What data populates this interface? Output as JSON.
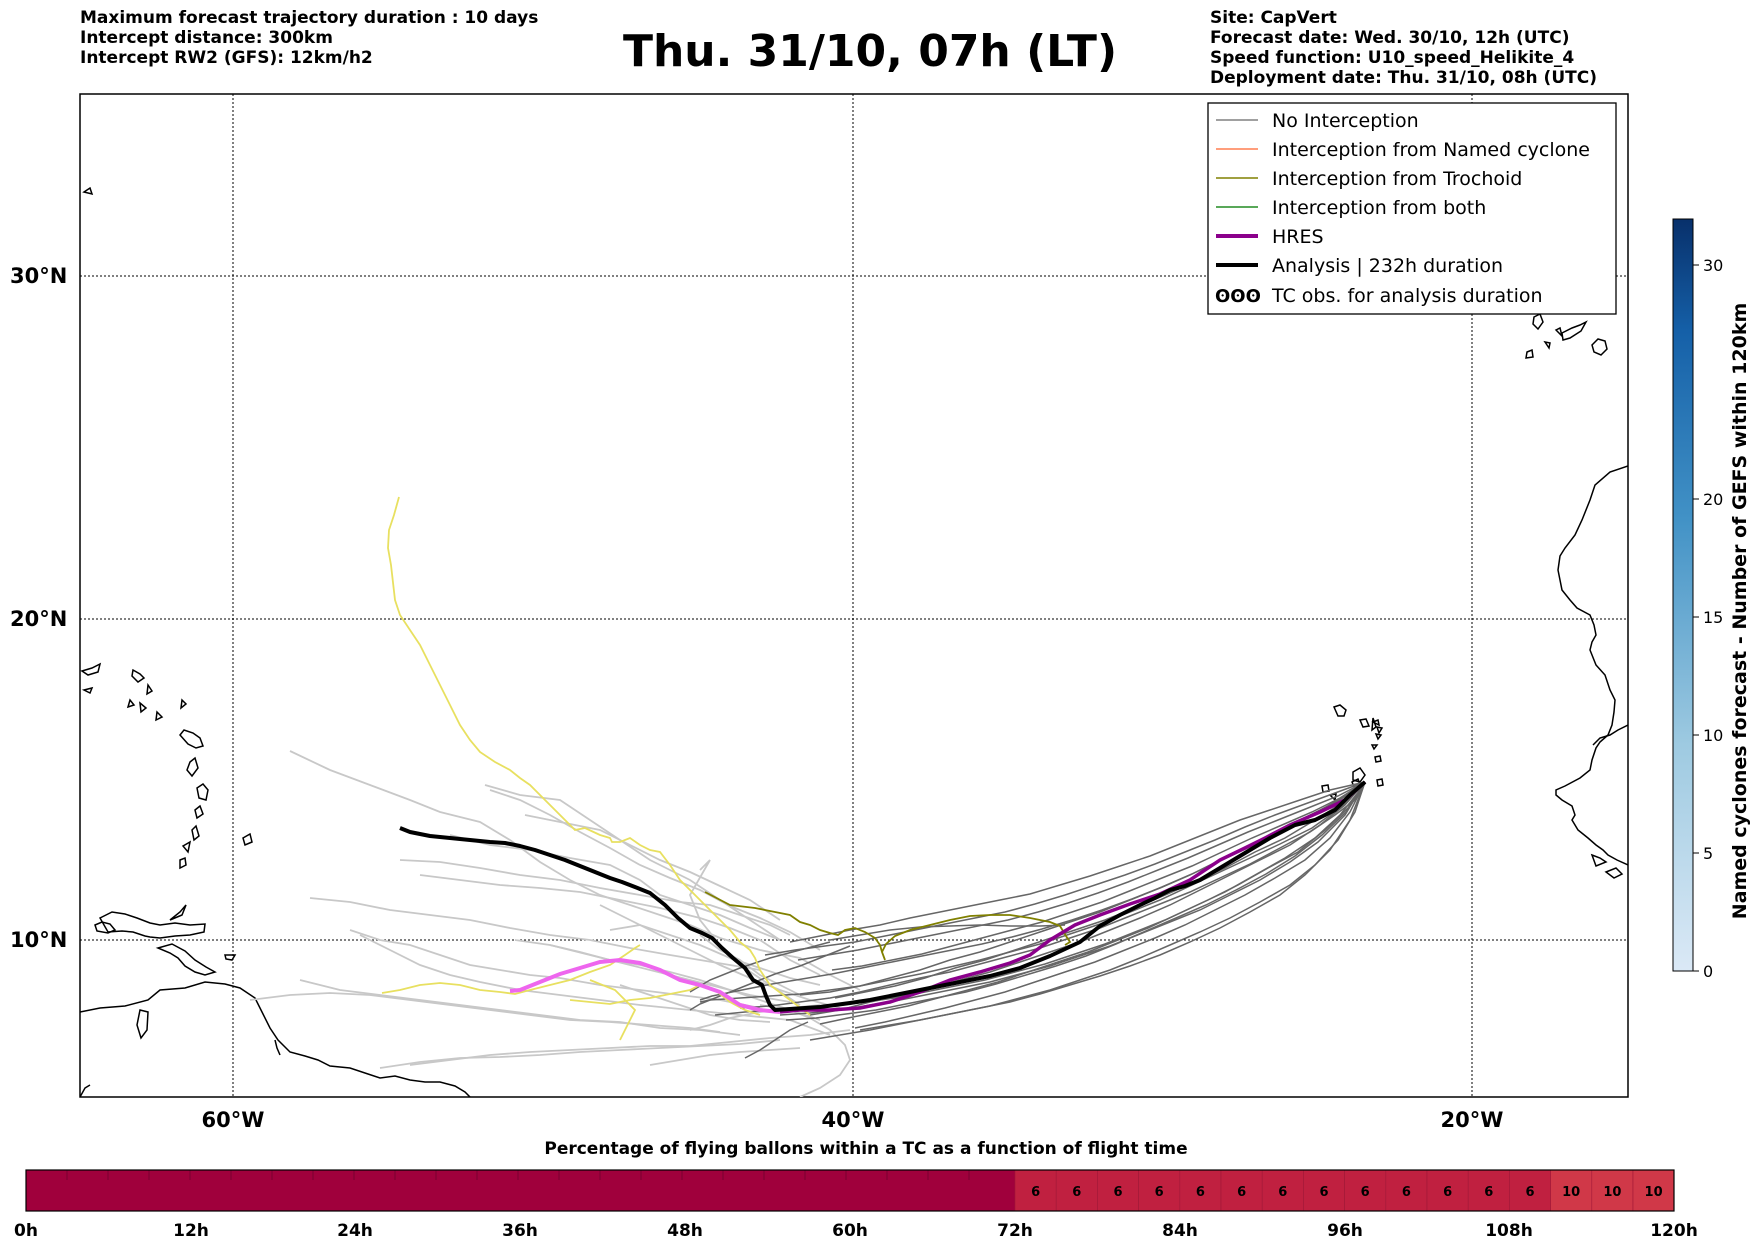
{
  "header": {
    "left": [
      "Maximum forecast trajectory duration : 10 days",
      "Intercept distance: 300km",
      "Intercept RW2 (GFS):  12km/h2"
    ],
    "right": [
      "Site: CapVert",
      "Forecast date: Wed. 30/10, 12h (UTC)",
      "Speed function: U10_speed_Helikite_4",
      "Deployment date: Thu. 31/10, 08h (UTC)"
    ],
    "title": "Thu. 31/10, 07h (LT)"
  },
  "map": {
    "lat_labels": [
      "30°N",
      "20°N",
      "10°N"
    ],
    "lon_labels": [
      "60°W",
      "40°W",
      "20°W"
    ],
    "colors": {
      "no_interception": "#808080",
      "named": "#ff7f50",
      "trochoid": "#808000",
      "both": "#228b22",
      "hres": "#8b008b",
      "analysis": "#000000",
      "gefs_light": "#c8c8c8",
      "yellow": "#e8e050",
      "pink": "#ee66ee"
    }
  },
  "legend": {
    "items": [
      "No Interception",
      "Interception from Named cyclone",
      "Interception from Trochoid",
      "Interception from both",
      "HRES",
      "Analysis | 232h duration",
      "TC obs. for analysis duration"
    ],
    "tc_glyph": "ʘʘʘ"
  },
  "colorbar_right": {
    "label": "Named cyclones forecast - Number of GEFS within 120km",
    "ticks": [
      "0",
      "5",
      "10",
      "15",
      "20",
      "30"
    ]
  },
  "bottom_bar": {
    "title": "Percentage of flying ballons within a TC as a function of flight time",
    "cells": [
      "6",
      "6",
      "6",
      "6",
      "6",
      "6",
      "6",
      "6",
      "6",
      "6",
      "6",
      "6",
      "6",
      "10",
      "10",
      "10"
    ],
    "ticks": [
      "0h",
      "12h",
      "24h",
      "36h",
      "48h",
      "60h",
      "72h",
      "84h",
      "96h",
      "108h",
      "120h"
    ]
  }
}
